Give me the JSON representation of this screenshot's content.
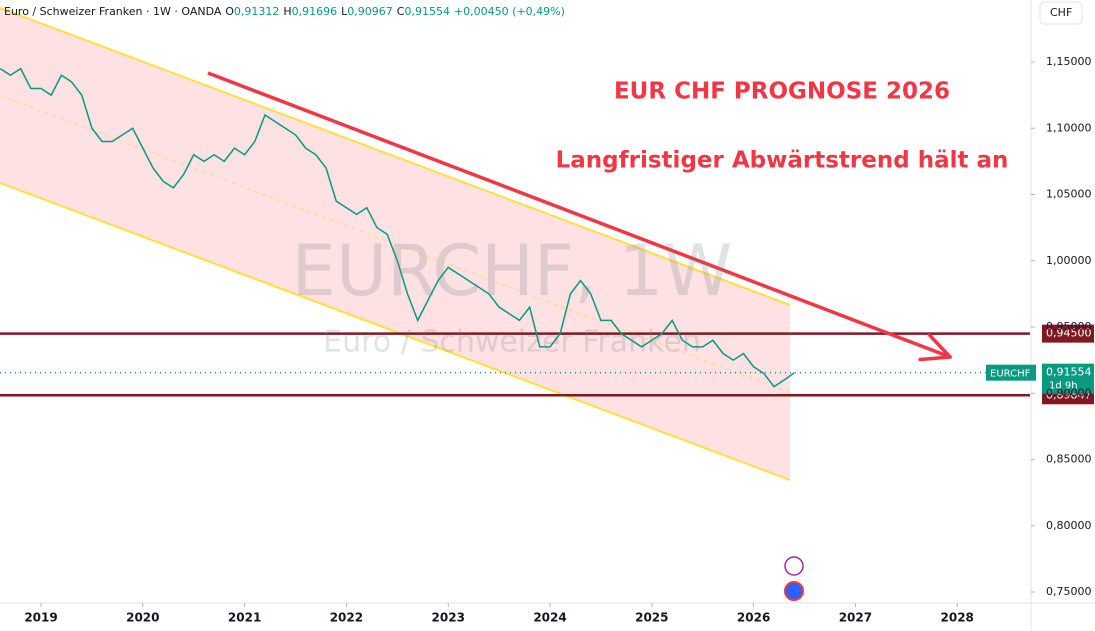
{
  "chart_data": {
    "type": "line",
    "header": {
      "symbol": "Euro / Schweizer Franken · 1W · OANDA",
      "o_label": "O",
      "o": "0,91312",
      "h_label": "H",
      "h": "0,91696",
      "l_label": "L",
      "l": "0,90967",
      "c_label": "C",
      "c": "0,91554",
      "change": "+0,00450 (+0,49%)"
    },
    "currency": "CHF",
    "watermark": "EURCHF, 1W",
    "watermark_sub": "Euro / Schweizer Franken",
    "annotations": [
      "EUR CHF PROGNOSE 2026",
      "Langfristiger Abwärtstrend hält an"
    ],
    "series": [
      {
        "name": "EURCHF",
        "color": "#089981",
        "x": [
          2018.6,
          2018.7,
          2018.8,
          2018.9,
          2019.0,
          2019.1,
          2019.2,
          2019.3,
          2019.4,
          2019.5,
          2019.6,
          2019.7,
          2019.8,
          2019.9,
          2020.0,
          2020.1,
          2020.2,
          2020.3,
          2020.4,
          2020.5,
          2020.6,
          2020.7,
          2020.8,
          2020.9,
          2021.0,
          2021.1,
          2021.2,
          2021.3,
          2021.4,
          2021.5,
          2021.6,
          2021.7,
          2021.8,
          2021.9,
          2022.0,
          2022.1,
          2022.2,
          2022.3,
          2022.4,
          2022.5,
          2022.6,
          2022.7,
          2022.8,
          2022.9,
          2023.0,
          2023.1,
          2023.2,
          2023.3,
          2023.4,
          2023.5,
          2023.6,
          2023.7,
          2023.8,
          2023.9,
          2024.0,
          2024.1,
          2024.2,
          2024.3,
          2024.4,
          2024.5,
          2024.6,
          2024.7,
          2024.8,
          2024.9,
          2025.0,
          2025.1,
          2025.2,
          2025.3,
          2025.4,
          2025.5,
          2025.6,
          2025.7,
          2025.8,
          2025.9,
          2026.0,
          2026.1,
          2026.2,
          2026.3,
          2026.4
        ],
        "values": [
          1.145,
          1.14,
          1.145,
          1.13,
          1.13,
          1.125,
          1.14,
          1.135,
          1.125,
          1.1,
          1.09,
          1.09,
          1.095,
          1.1,
          1.085,
          1.07,
          1.06,
          1.055,
          1.065,
          1.08,
          1.075,
          1.08,
          1.075,
          1.085,
          1.08,
          1.09,
          1.11,
          1.105,
          1.1,
          1.095,
          1.085,
          1.08,
          1.07,
          1.045,
          1.04,
          1.035,
          1.04,
          1.025,
          1.02,
          1.0,
          0.975,
          0.955,
          0.97,
          0.985,
          0.995,
          0.99,
          0.985,
          0.98,
          0.975,
          0.965,
          0.96,
          0.955,
          0.965,
          0.935,
          0.935,
          0.945,
          0.975,
          0.985,
          0.975,
          0.955,
          0.955,
          0.945,
          0.94,
          0.935,
          0.94,
          0.945,
          0.955,
          0.94,
          0.935,
          0.935,
          0.94,
          0.93,
          0.925,
          0.93,
          0.92,
          0.915,
          0.905,
          0.91,
          0.9155
        ]
      }
    ],
    "channel": {
      "x": [
        2018.597,
        2026.357
      ],
      "upper": [
        1.1908,
        0.9666
      ],
      "lower": [
        1.0587,
        0.8345
      ]
    },
    "trend_arrow": {
      "x": [
        2020.64,
        2027.93
      ],
      "y": [
        1.1417,
        0.9274
      ]
    },
    "levels": [
      {
        "value": 0.945,
        "label": "0,94500"
      },
      {
        "value": 0.89847,
        "label": "0,89847"
      }
    ],
    "last_price": {
      "value": 0.91554,
      "label": "0,91554",
      "countdown": "1d 9h"
    },
    "xlim": [
      2018.597,
      2028.715
    ],
    "ylim": [
      0.7417,
      1.1968
    ],
    "xticks": [
      2019,
      2020,
      2021,
      2022,
      2023,
      2024,
      2025,
      2026,
      2027,
      2028
    ],
    "yticks": [
      {
        "value": 0.75,
        "label": "0,75000"
      },
      {
        "value": 0.8,
        "label": "0,80000"
      },
      {
        "value": 0.85,
        "label": "0,85000"
      },
      {
        "value": 0.9,
        "label": "0,90000"
      },
      {
        "value": 0.95,
        "label": "0,95000"
      },
      {
        "value": 1.0,
        "label": "1,00000"
      },
      {
        "value": 1.05,
        "label": "1,05000"
      },
      {
        "value": 1.1,
        "label": "1,10000"
      },
      {
        "value": 1.15,
        "label": "1,15000"
      }
    ],
    "grid": false
  }
}
